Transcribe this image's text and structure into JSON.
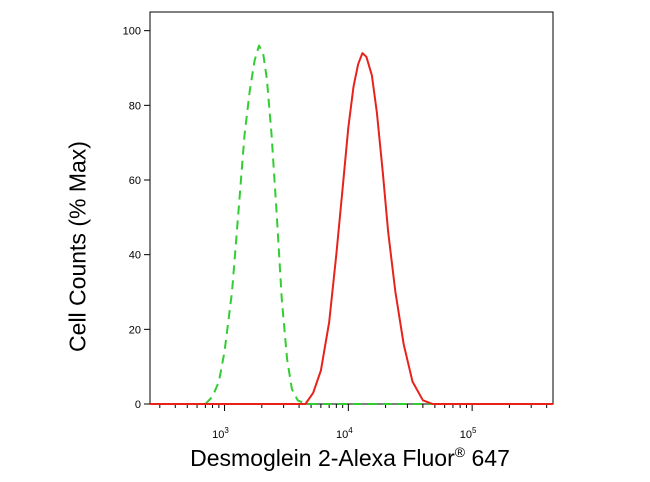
{
  "chart_data": {
    "type": "line",
    "title": "",
    "xlabel": {
      "text_before_sup": "Desmoglein 2-Alexa Fluor",
      "sup": "®",
      "text_after_sup": " 647"
    },
    "ylabel": "Cell Counts (% Max)",
    "x_scale": "log",
    "xlim": [
      250,
      450000
    ],
    "ylim": [
      0,
      105
    ],
    "y_ticks": [
      0,
      20,
      40,
      60,
      80,
      100
    ],
    "x_ticks": [
      {
        "value": 1000,
        "base": "10",
        "exp": "3"
      },
      {
        "value": 10000,
        "base": "10",
        "exp": "4"
      },
      {
        "value": 100000,
        "base": "10",
        "exp": "5"
      }
    ],
    "grid": false,
    "legend": "none",
    "series": [
      {
        "color": "#32cd32",
        "style": "dashed",
        "points": [
          [
            400,
            0
          ],
          [
            700,
            0
          ],
          [
            800,
            2
          ],
          [
            900,
            6
          ],
          [
            1000,
            14
          ],
          [
            1150,
            30
          ],
          [
            1300,
            52
          ],
          [
            1450,
            72
          ],
          [
            1600,
            84
          ],
          [
            1750,
            92
          ],
          [
            1900,
            96
          ],
          [
            2050,
            94
          ],
          [
            2200,
            87
          ],
          [
            2400,
            72
          ],
          [
            2650,
            50
          ],
          [
            2900,
            28
          ],
          [
            3200,
            12
          ],
          [
            3500,
            4
          ],
          [
            3900,
            1
          ],
          [
            4500,
            0
          ],
          [
            450000,
            0
          ]
        ]
      },
      {
        "color": "#e8221b",
        "style": "solid",
        "points": [
          [
            250,
            0
          ],
          [
            4500,
            0
          ],
          [
            5200,
            3
          ],
          [
            6000,
            9
          ],
          [
            7000,
            22
          ],
          [
            8000,
            40
          ],
          [
            9000,
            58
          ],
          [
            10000,
            74
          ],
          [
            11000,
            85
          ],
          [
            12000,
            91
          ],
          [
            13000,
            94
          ],
          [
            14000,
            93
          ],
          [
            15500,
            88
          ],
          [
            17000,
            78
          ],
          [
            19000,
            62
          ],
          [
            21000,
            46
          ],
          [
            24000,
            30
          ],
          [
            28000,
            16
          ],
          [
            33000,
            6
          ],
          [
            40000,
            1
          ],
          [
            48000,
            0
          ],
          [
            450000,
            0
          ]
        ]
      }
    ]
  }
}
